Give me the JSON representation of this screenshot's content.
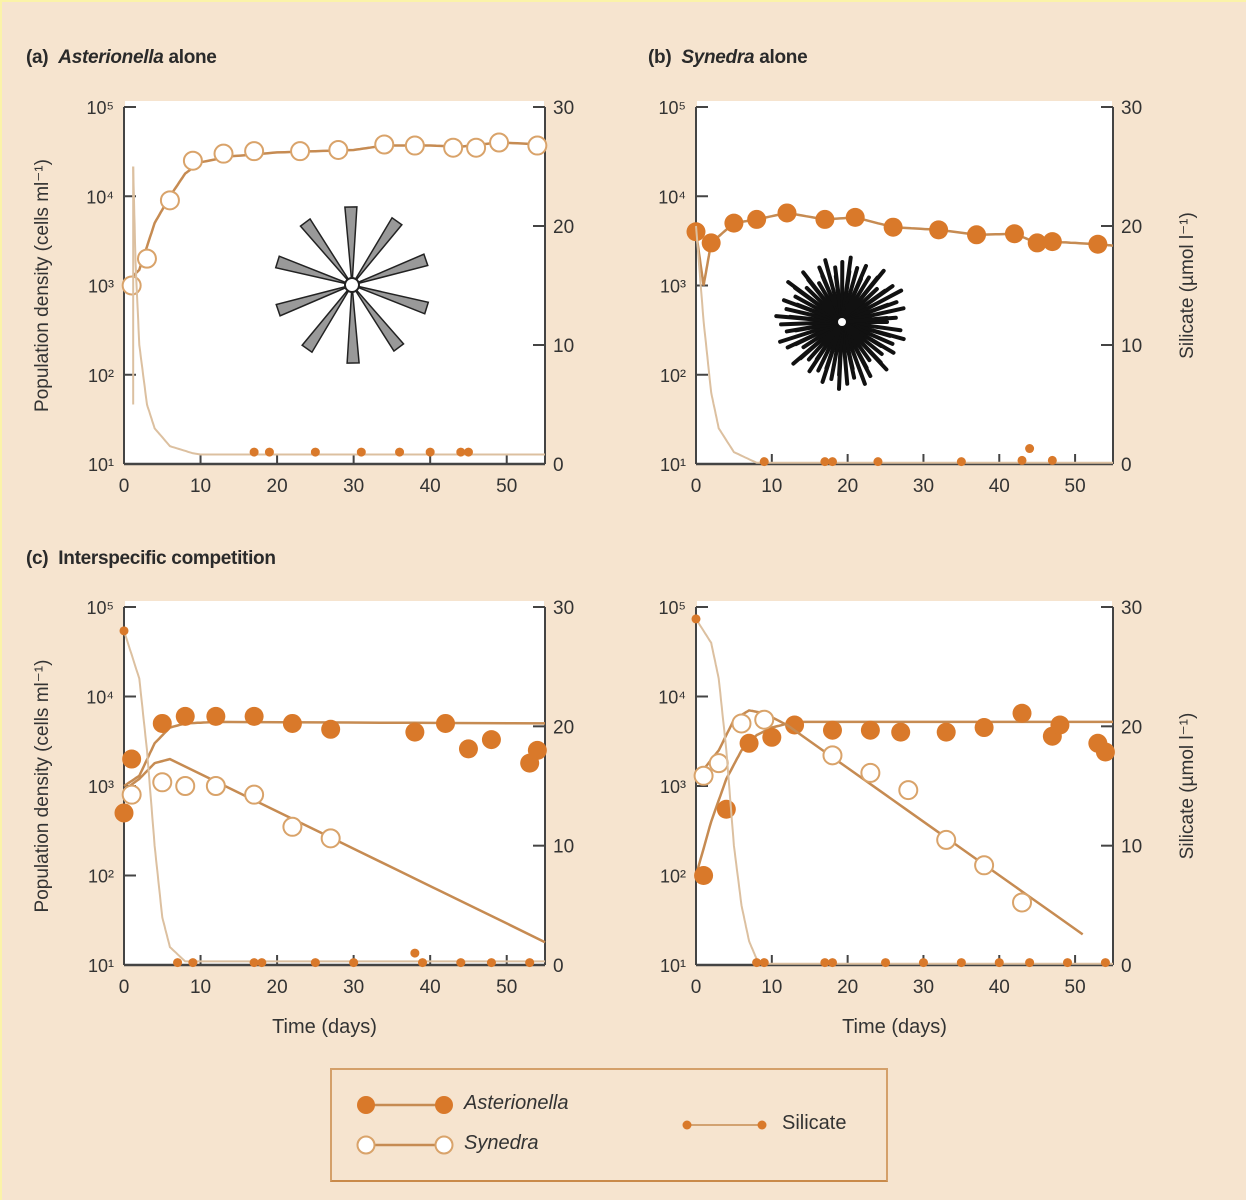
{
  "colors": {
    "background": "#f6e4cf",
    "asterionella": "#d9792a",
    "synedra_fill": "#ffffff",
    "synedra_stroke": "#d9a36a",
    "fit_line": "#c68b52",
    "silicate_line": "#dcc0a0",
    "silicate_points": "#d9792a",
    "axis": "#444444"
  },
  "legend": {
    "asterionella": "Asterionella",
    "synedra": "Synedra",
    "silicate": "Silicate"
  },
  "chart_data": [
    {
      "type": "line",
      "panel_label": "(a)",
      "title_italic": "Asterionella",
      "title_rest": "alone",
      "ylabel": "Population density (cells ml⁻¹)",
      "y2label": "",
      "xlabel": "",
      "xlim": [
        0,
        55
      ],
      "xticks": [
        "0",
        "10",
        "20",
        "30",
        "40",
        "50"
      ],
      "ylim": [
        10,
        100000
      ],
      "yscale": "log",
      "yticks": [
        "10¹",
        "10²",
        "10³",
        "10⁴",
        "10⁵"
      ],
      "y2lim": [
        0,
        30
      ],
      "y2ticks": [
        "0",
        "10",
        "20",
        "30"
      ],
      "illustration": "asterionella-colony-icon",
      "series": [
        {
          "species": "asterionella",
          "marker": "open-circle",
          "points": [
            [
              1,
              1000
            ],
            [
              3,
              2000
            ],
            [
              6,
              9000
            ],
            [
              9,
              25000
            ],
            [
              13,
              30000
            ],
            [
              17,
              32000
            ],
            [
              23,
              32000
            ],
            [
              28,
              33000
            ],
            [
              34,
              38000
            ],
            [
              38,
              37000
            ],
            [
              43,
              35000
            ],
            [
              46,
              35000
            ],
            [
              49,
              40000
            ],
            [
              54,
              37000
            ]
          ],
          "fit": [
            [
              0,
              1000
            ],
            [
              2,
              1500
            ],
            [
              4,
              5000
            ],
            [
              6,
              10000
            ],
            [
              8,
              18000
            ],
            [
              10,
              24000
            ],
            [
              14,
              28000
            ],
            [
              20,
              31000
            ],
            [
              30,
              33000
            ],
            [
              34,
              37000
            ],
            [
              40,
              37000
            ],
            [
              44,
              36000
            ],
            [
              49,
              40000
            ],
            [
              55,
              38000
            ]
          ]
        },
        {
          "species": "silicate",
          "axis": "right",
          "points": [
            [
              17,
              1
            ],
            [
              19,
              1
            ],
            [
              25,
              1
            ],
            [
              31,
              1
            ],
            [
              36,
              1
            ],
            [
              40,
              1
            ],
            [
              44,
              1
            ],
            [
              45,
              1
            ]
          ],
          "fit": [
            [
              1.2,
              25
            ],
            [
              1.5,
              17
            ],
            [
              2,
              10
            ],
            [
              3,
              5
            ],
            [
              4,
              3
            ],
            [
              6,
              1.5
            ],
            [
              9,
              0.9
            ],
            [
              10,
              0.8
            ],
            [
              55,
              0.8
            ]
          ]
        }
      ]
    },
    {
      "type": "line",
      "panel_label": "(b)",
      "title_italic": "Synedra",
      "title_rest": "alone",
      "ylabel": "",
      "y2label": "Silicate (µmol l⁻¹)",
      "xlabel": "",
      "xlim": [
        0,
        55
      ],
      "xticks": [
        "0",
        "10",
        "20",
        "30",
        "40",
        "50"
      ],
      "ylim": [
        10,
        100000
      ],
      "yscale": "log",
      "yticks": [
        "10¹",
        "10²",
        "10³",
        "10⁴",
        "10⁵"
      ],
      "y2lim": [
        0,
        30
      ],
      "y2ticks": [
        "0",
        "10",
        "20",
        "30"
      ],
      "illustration": "synedra-colony-icon",
      "series": [
        {
          "species": "synedra",
          "marker": "filled-circle",
          "points": [
            [
              0,
              4000
            ],
            [
              2,
              3000
            ],
            [
              5,
              5000
            ],
            [
              8,
              5500
            ],
            [
              12,
              6500
            ],
            [
              17,
              5500
            ],
            [
              21,
              5800
            ],
            [
              26,
              4500
            ],
            [
              32,
              4200
            ],
            [
              37,
              3700
            ],
            [
              42,
              3800
            ],
            [
              45,
              3000
            ],
            [
              47,
              3100
            ],
            [
              53,
              2900
            ]
          ],
          "fit": [
            [
              0,
              4000
            ],
            [
              1,
              1000
            ],
            [
              2,
              3000
            ],
            [
              5,
              5000
            ],
            [
              8,
              5500
            ],
            [
              12,
              6500
            ],
            [
              17,
              5500
            ],
            [
              21,
              5800
            ],
            [
              26,
              4500
            ],
            [
              32,
              4200
            ],
            [
              37,
              3700
            ],
            [
              42,
              3800
            ],
            [
              45,
              3000
            ],
            [
              47,
              3100
            ],
            [
              53,
              2900
            ],
            [
              55,
              2800
            ]
          ]
        },
        {
          "species": "silicate",
          "axis": "right",
          "points": [
            [
              9,
              0.2
            ],
            [
              17,
              0.2
            ],
            [
              18,
              0.2
            ],
            [
              24,
              0.2
            ],
            [
              35,
              0.2
            ],
            [
              43,
              0.3
            ],
            [
              44,
              1.3
            ],
            [
              47,
              0.3
            ]
          ],
          "fit": [
            [
              0,
              20
            ],
            [
              1,
              12
            ],
            [
              2,
              6
            ],
            [
              3,
              3
            ],
            [
              5,
              1
            ],
            [
              8,
              0.1
            ],
            [
              55,
              0.1
            ]
          ]
        }
      ]
    },
    {
      "type": "line",
      "panel_label": "(c)",
      "title_italic": "",
      "title_rest": "Interspecific competition",
      "ylabel": "Population density (cells ml⁻¹)",
      "y2label": "",
      "xlabel": "Time (days)",
      "xlim": [
        0,
        55
      ],
      "xticks": [
        "0",
        "10",
        "20",
        "30",
        "40",
        "50"
      ],
      "ylim": [
        10,
        100000
      ],
      "yscale": "log",
      "yticks": [
        "10¹",
        "10²",
        "10³",
        "10⁴",
        "10⁵"
      ],
      "y2lim": [
        0,
        30
      ],
      "y2ticks": [
        "0",
        "10",
        "20",
        "30"
      ],
      "series": [
        {
          "species": "asterionella",
          "marker": "filled-circle",
          "points": [
            [
              0,
              500
            ],
            [
              1,
              2000
            ],
            [
              5,
              5000
            ],
            [
              8,
              6000
            ],
            [
              12,
              6000
            ],
            [
              17,
              6000
            ],
            [
              22,
              5000
            ],
            [
              27,
              4300
            ],
            [
              38,
              4000
            ],
            [
              42,
              5000
            ],
            [
              45,
              2600
            ],
            [
              48,
              3300
            ],
            [
              53,
              1800
            ],
            [
              54,
              2500
            ]
          ],
          "fit": [
            [
              0,
              1000
            ],
            [
              2,
              1300
            ],
            [
              4,
              3000
            ],
            [
              6,
              4500
            ],
            [
              8,
              5000
            ],
            [
              12,
              5200
            ],
            [
              55,
              5000
            ]
          ]
        },
        {
          "species": "synedra",
          "marker": "open-circle",
          "points": [
            [
              1,
              800
            ],
            [
              5,
              1100
            ],
            [
              8,
              1000
            ],
            [
              12,
              1000
            ],
            [
              17,
              800
            ],
            [
              22,
              350
            ],
            [
              27,
              260
            ]
          ],
          "fit": [
            [
              0,
              900
            ],
            [
              2,
              1200
            ],
            [
              4,
              1800
            ],
            [
              6,
              2000
            ],
            [
              55,
              18
            ]
          ]
        },
        {
          "species": "silicate",
          "axis": "right",
          "points": [
            [
              0,
              28
            ],
            [
              7,
              0.2
            ],
            [
              9,
              0.2
            ],
            [
              17,
              0.2
            ],
            [
              18,
              0.2
            ],
            [
              25,
              0.2
            ],
            [
              30,
              0.2
            ],
            [
              38,
              1
            ],
            [
              39,
              0.2
            ],
            [
              44,
              0.2
            ],
            [
              48,
              0.2
            ],
            [
              53,
              0.2
            ]
          ],
          "fit": [
            [
              0,
              28
            ],
            [
              2,
              24
            ],
            [
              3,
              18
            ],
            [
              4,
              10
            ],
            [
              5,
              4
            ],
            [
              6,
              1.5
            ],
            [
              8,
              0.3
            ],
            [
              55,
              0.3
            ]
          ]
        }
      ]
    },
    {
      "type": "line",
      "panel_label": "",
      "title_italic": "",
      "title_rest": "",
      "ylabel": "",
      "y2label": "Silicate (µmol l⁻¹)",
      "xlabel": "Time (days)",
      "xlim": [
        0,
        55
      ],
      "xticks": [
        "0",
        "10",
        "20",
        "30",
        "40",
        "50"
      ],
      "ylim": [
        10,
        100000
      ],
      "yscale": "log",
      "yticks": [
        "10¹",
        "10²",
        "10³",
        "10⁴",
        "10⁵"
      ],
      "y2lim": [
        0,
        30
      ],
      "y2ticks": [
        "0",
        "10",
        "20",
        "30"
      ],
      "series": [
        {
          "species": "asterionella",
          "marker": "filled-circle",
          "points": [
            [
              1,
              100
            ],
            [
              4,
              550
            ],
            [
              7,
              3000
            ],
            [
              10,
              3500
            ],
            [
              13,
              4800
            ],
            [
              18,
              4200
            ],
            [
              23,
              4200
            ],
            [
              27,
              4000
            ],
            [
              33,
              4000
            ],
            [
              38,
              4500
            ],
            [
              43,
              6500
            ],
            [
              47,
              3600
            ],
            [
              48,
              4800
            ],
            [
              53,
              3000
            ],
            [
              54,
              2400
            ]
          ],
          "fit": [
            [
              0,
              100
            ],
            [
              2,
              400
            ],
            [
              4,
              1200
            ],
            [
              6,
              2500
            ],
            [
              8,
              3700
            ],
            [
              10,
              4500
            ],
            [
              13,
              5200
            ],
            [
              55,
              5200
            ]
          ]
        },
        {
          "species": "synedra",
          "marker": "open-circle",
          "points": [
            [
              1,
              1300
            ],
            [
              3,
              1800
            ],
            [
              6,
              5000
            ],
            [
              9,
              5500
            ],
            [
              18,
              2200
            ],
            [
              23,
              1400
            ],
            [
              28,
              900
            ],
            [
              33,
              250
            ],
            [
              38,
              130
            ],
            [
              43,
              50
            ]
          ],
          "fit": [
            [
              0,
              1200
            ],
            [
              3,
              2500
            ],
            [
              5,
              5500
            ],
            [
              7,
              7000
            ],
            [
              9,
              6500
            ],
            [
              12,
              4800
            ],
            [
              51,
              22
            ]
          ]
        },
        {
          "species": "silicate",
          "axis": "right",
          "points": [
            [
              0,
              29
            ],
            [
              8,
              0.2
            ],
            [
              9,
              0.2
            ],
            [
              17,
              0.2
            ],
            [
              18,
              0.2
            ],
            [
              25,
              0.2
            ],
            [
              30,
              0.2
            ],
            [
              35,
              0.2
            ],
            [
              40,
              0.2
            ],
            [
              44,
              0.2
            ],
            [
              49,
              0.2
            ],
            [
              54,
              0.2
            ]
          ],
          "fit": [
            [
              0,
              29
            ],
            [
              2,
              27
            ],
            [
              3,
              24
            ],
            [
              4,
              18
            ],
            [
              5,
              10
            ],
            [
              6,
              5
            ],
            [
              7,
              2
            ],
            [
              8,
              0.5
            ],
            [
              9,
              0.1
            ],
            [
              55,
              0.1
            ]
          ]
        }
      ]
    }
  ]
}
